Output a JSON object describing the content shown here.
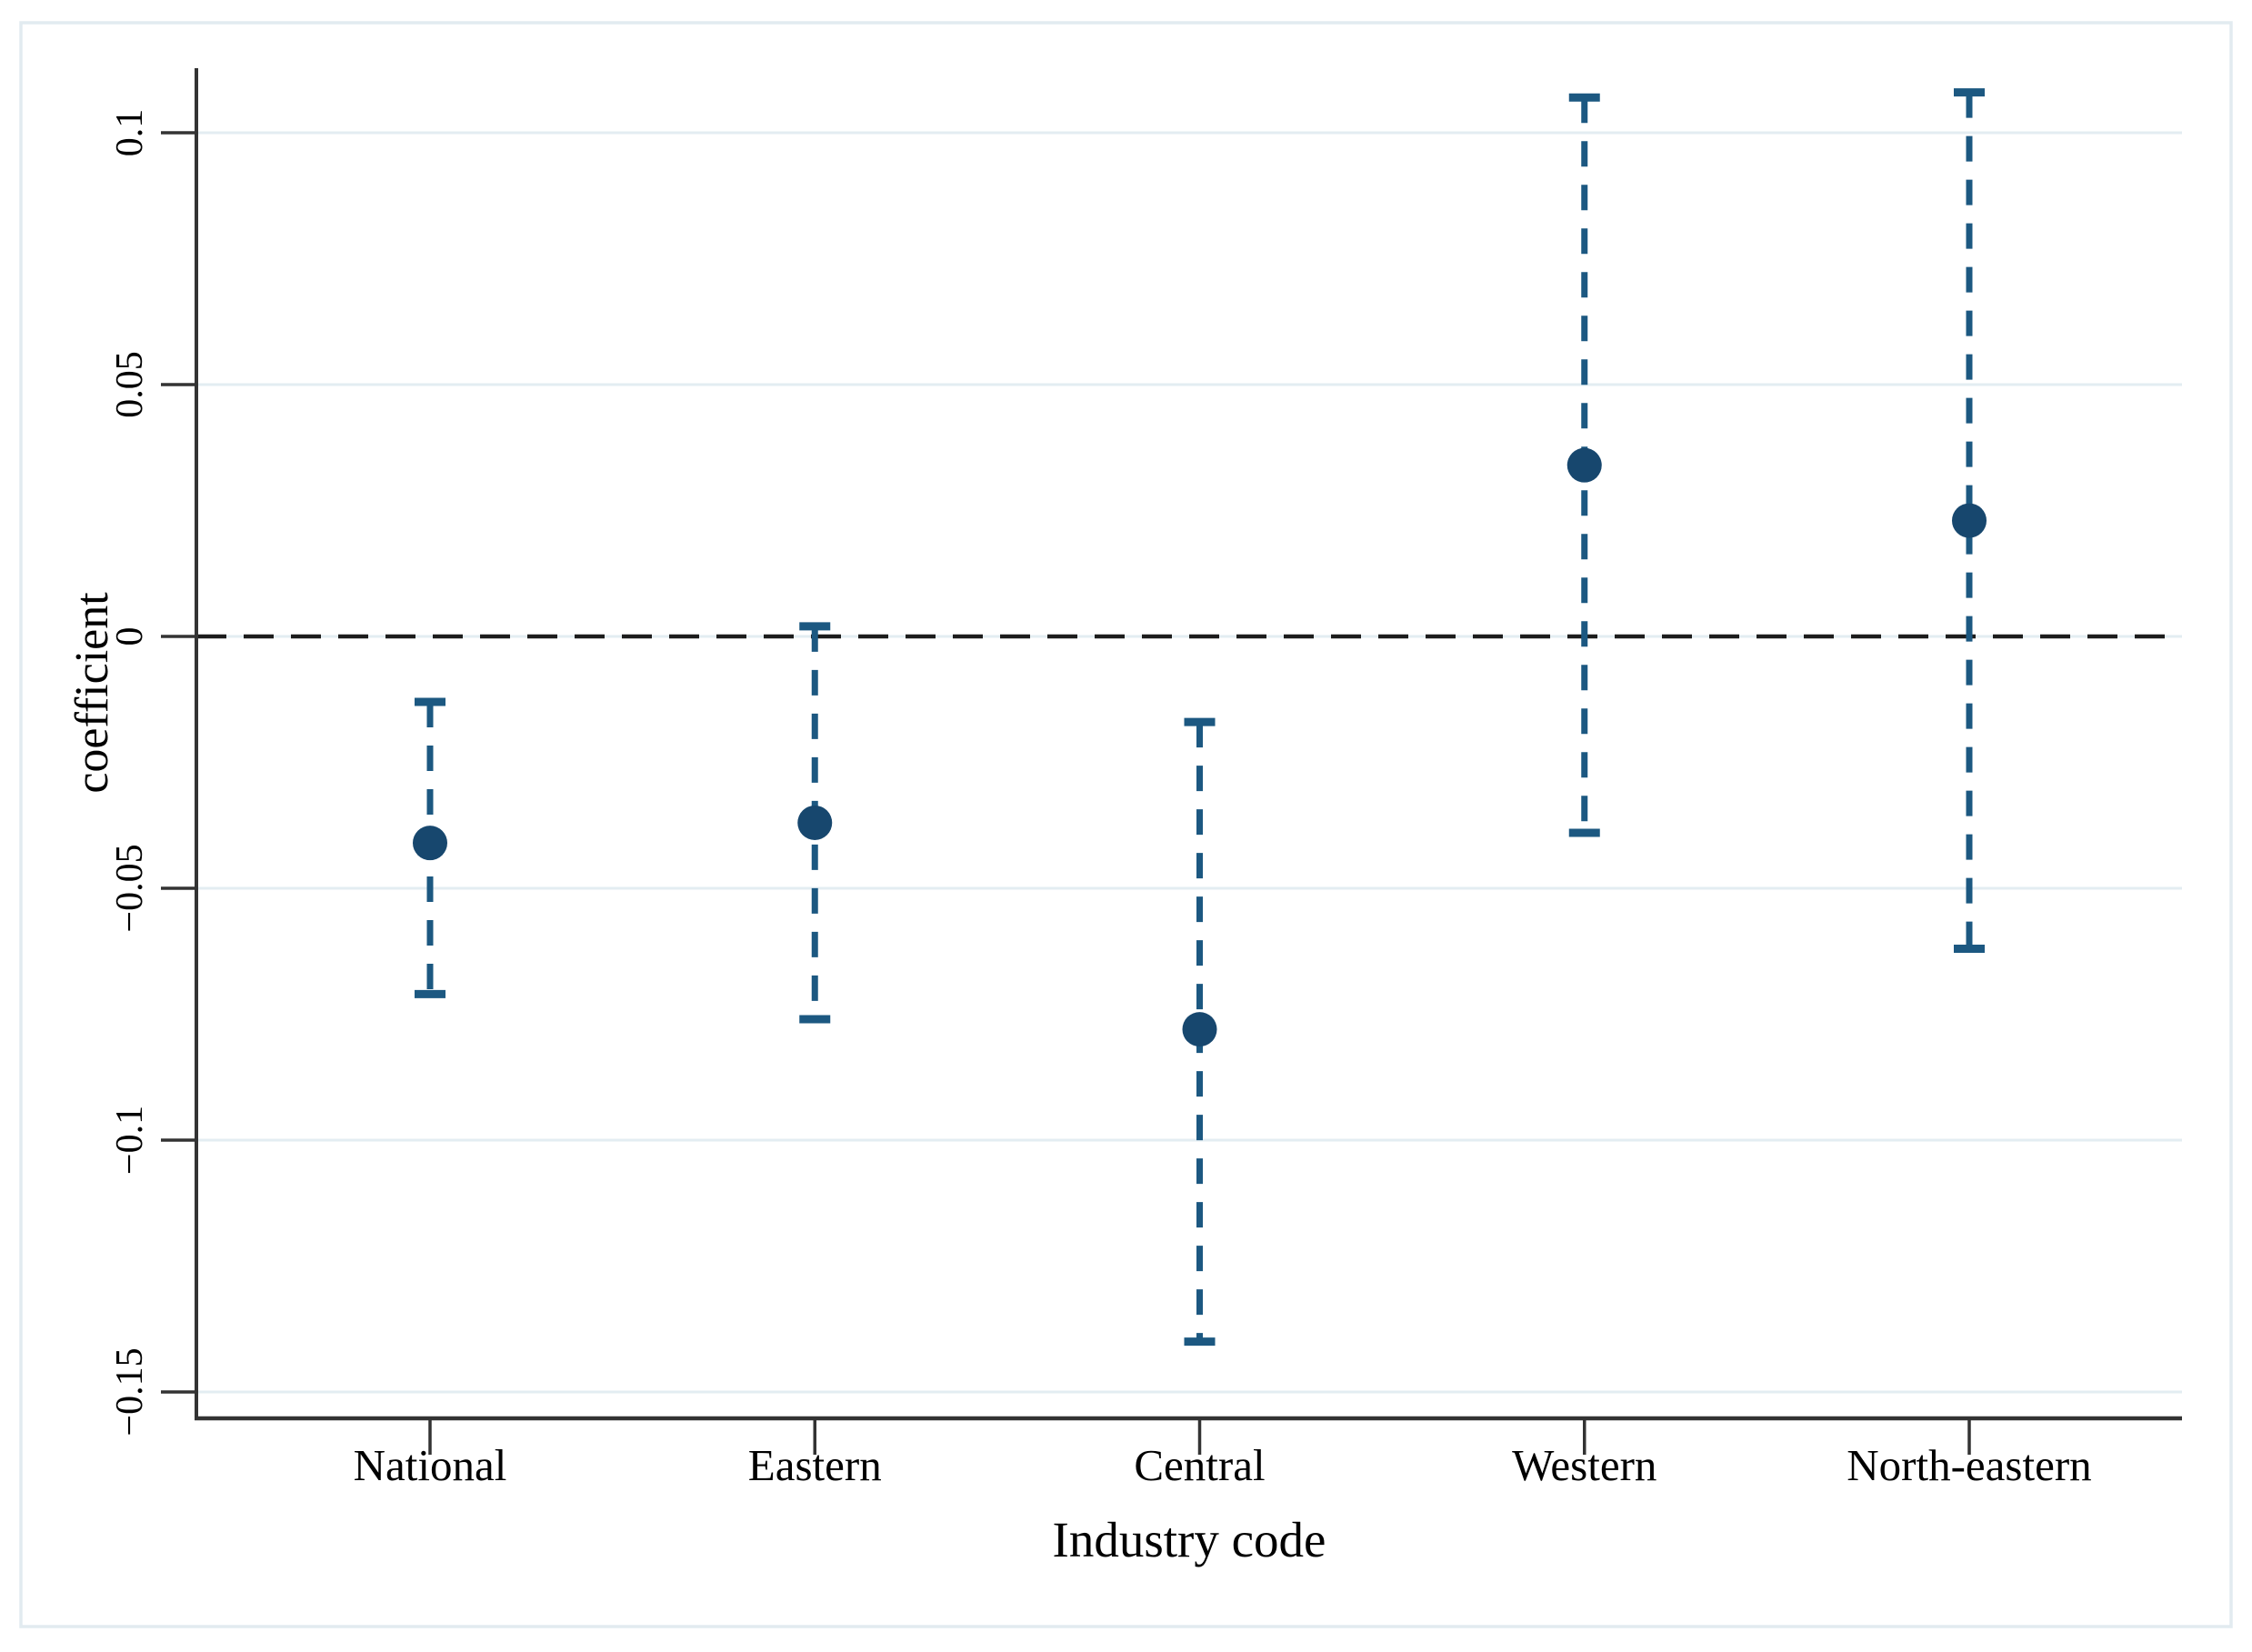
{
  "figure": {
    "y_axis_title": "coefficient",
    "x_axis_title": "Industry code"
  },
  "chart_data": {
    "type": "scatter",
    "subtype": "coefficient-plot-with-confidence-intervals",
    "title": "",
    "xlabel": "Industry code",
    "ylabel": "coefficient",
    "categories": [
      "National",
      "Eastern",
      "Central",
      "Western",
      "North-eastern"
    ],
    "series": [
      {
        "name": "coefficient",
        "values": [
          -0.041,
          -0.037,
          -0.078,
          0.034,
          0.023
        ]
      },
      {
        "name": "ci_lower",
        "values": [
          -0.071,
          -0.076,
          -0.14,
          -0.039,
          -0.062
        ]
      },
      {
        "name": "ci_upper",
        "values": [
          -0.013,
          0.002,
          -0.017,
          0.107,
          0.108
        ]
      }
    ],
    "ylim": [
      -0.168,
      0.113
    ],
    "y_tick_values": [
      0.1,
      0.05,
      0,
      -0.05,
      -0.1,
      -0.15
    ],
    "y_tick_labels": [
      "0.1",
      "0.05",
      "0",
      "−0.05",
      "−0.1",
      "−0.15"
    ],
    "zero_reference_line": true,
    "grid": true,
    "legend": "none",
    "colors": {
      "marker": "#17476e",
      "whisker": "#1c5881",
      "gridline": "#e3edf2",
      "zero_line": "#1c1c1c",
      "axis": "#333333",
      "frame_border": "#e2ebf0",
      "text": "#000000",
      "background": "#ffffff"
    }
  }
}
